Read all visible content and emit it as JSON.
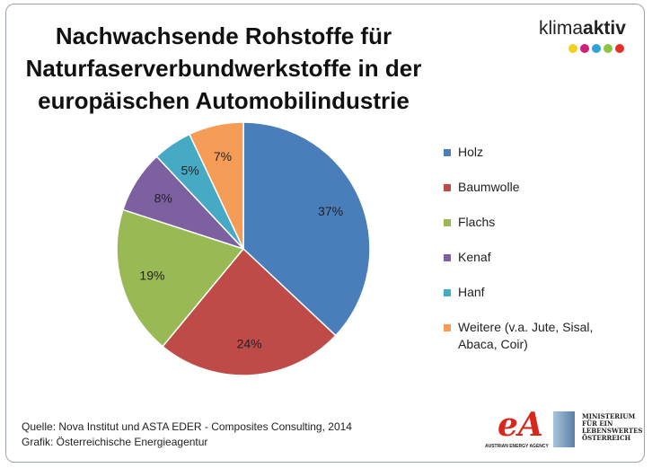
{
  "title_lines": [
    "Nachwachsende Rohstoffe für",
    "Naturfaserverbundwerkstoffe in der",
    "europäischen Automobilindustrie"
  ],
  "brand": {
    "prefix": "klima",
    "suffix": "aktiv",
    "dot_colors": [
      "#f0d21a",
      "#cf1f7a",
      "#2fa3d6",
      "#8cc63f",
      "#e4302b"
    ]
  },
  "chart_data": {
    "type": "pie",
    "title": "Nachwachsende Rohstoffe für Naturfaserverbundwerkstoffe in der europäischen Automobilindustrie",
    "legend_position": "right",
    "slices": [
      {
        "label": "Holz",
        "value": 37,
        "display": "37%",
        "color": "#4a7ebb"
      },
      {
        "label": "Baumwolle",
        "value": 24,
        "display": "24%",
        "color": "#be4b48"
      },
      {
        "label": "Flachs",
        "value": 19,
        "display": "19%",
        "color": "#98b954"
      },
      {
        "label": "Kenaf",
        "value": 8,
        "display": "8%",
        "color": "#7d60a0"
      },
      {
        "label": "Hanf",
        "value": 5,
        "display": "5%",
        "color": "#46aac5"
      },
      {
        "label": "Weitere (v.a. Jute, Sisal, Abaca, Coir)",
        "value": 7,
        "display": "7%",
        "color": "#f59d56"
      }
    ]
  },
  "source": {
    "line1": "Quelle: Nova Institut und ASTA EDER - Composites Consulting, 2014",
    "line2": "Grafik: Österreichische  Energieagentur"
  },
  "logos": {
    "aea_sub": "AUSTRIAN ENERGY AGENCY",
    "ministry_lines": [
      "MINISTERIUM",
      "FÜR EIN",
      "LEBENSWERTES",
      "ÖSTERREICH"
    ]
  }
}
